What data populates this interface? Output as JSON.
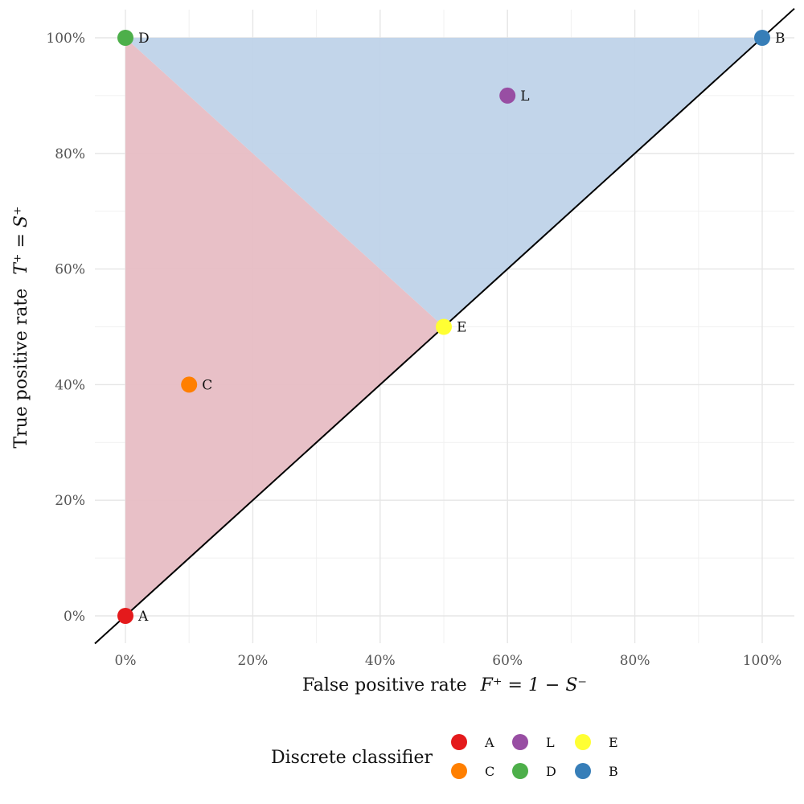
{
  "chart_data": {
    "type": "scatter",
    "title": "",
    "xlabel_main": "False positive rate",
    "xlabel_formula": "F⁺ = 1 − S⁻",
    "ylabel_main": "True positive rate",
    "ylabel_formula": "T⁺ = S⁺",
    "xlim": [
      0,
      1
    ],
    "ylim": [
      0,
      1
    ],
    "x_ticks": [
      0,
      0.2,
      0.4,
      0.6,
      0.8,
      1.0
    ],
    "y_ticks": [
      0,
      0.2,
      0.4,
      0.6,
      0.8,
      1.0
    ],
    "x_tick_labels": [
      "0%",
      "20%",
      "40%",
      "60%",
      "80%",
      "100%"
    ],
    "y_tick_labels": [
      "0%",
      "20%",
      "40%",
      "60%",
      "80%",
      "100%"
    ],
    "grid": true,
    "diagonal_line": true,
    "regions": [
      {
        "vertices": [
          [
            0,
            0
          ],
          [
            0,
            1
          ],
          [
            0.5,
            0.5
          ]
        ],
        "color": "#E7BDC4"
      },
      {
        "vertices": [
          [
            0,
            1
          ],
          [
            1,
            1
          ],
          [
            0.5,
            0.5
          ]
        ],
        "color": "#BFD3E9"
      }
    ],
    "points": [
      {
        "label": "A",
        "x": 0.0,
        "y": 0.0,
        "color": "#E41A1C"
      },
      {
        "label": "C",
        "x": 0.1,
        "y": 0.4,
        "color": "#FF7F00"
      },
      {
        "label": "L",
        "x": 0.6,
        "y": 0.9,
        "color": "#984EA3"
      },
      {
        "label": "D",
        "x": 0.0,
        "y": 1.0,
        "color": "#4DAF4A"
      },
      {
        "label": "E",
        "x": 0.5,
        "y": 0.5,
        "color": "#FFFF33"
      },
      {
        "label": "B",
        "x": 1.0,
        "y": 1.0,
        "color": "#377EB8"
      }
    ],
    "legend": {
      "title": "Discrete classifier",
      "position": "bottom",
      "entries": [
        {
          "label": "A",
          "color": "#E41A1C"
        },
        {
          "label": "C",
          "color": "#FF7F00"
        },
        {
          "label": "L",
          "color": "#984EA3"
        },
        {
          "label": "D",
          "color": "#4DAF4A"
        },
        {
          "label": "E",
          "color": "#FFFF33"
        },
        {
          "label": "B",
          "color": "#377EB8"
        }
      ]
    }
  }
}
